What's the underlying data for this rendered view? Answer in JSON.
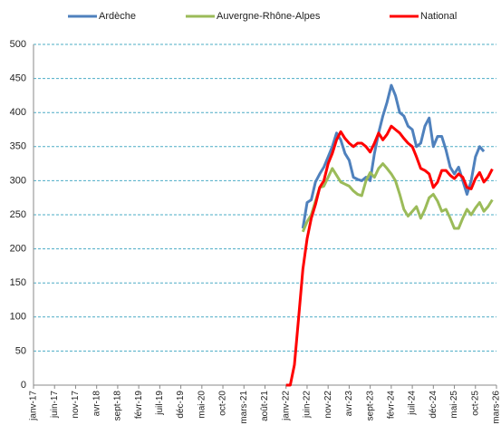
{
  "chart_data": {
    "type": "line",
    "categories": [
      "janv-17",
      null,
      null,
      null,
      null,
      "juin-17",
      null,
      null,
      null,
      null,
      "nov-17",
      null,
      null,
      null,
      null,
      "avr-18",
      null,
      null,
      null,
      null,
      "sept-18",
      null,
      null,
      null,
      null,
      "févr-19",
      null,
      null,
      null,
      null,
      "juil-19",
      null,
      null,
      null,
      null,
      "déc-19",
      null,
      null,
      null,
      null,
      "mai-20",
      null,
      null,
      null,
      null,
      "oct-20",
      null,
      null,
      null,
      null,
      "mars-21",
      null,
      null,
      null,
      null,
      "août-21",
      null,
      null,
      null,
      null,
      "janv-22",
      null,
      null,
      null,
      null,
      "juin-22",
      null,
      null,
      null,
      null,
      "nov-22",
      null,
      null,
      null,
      null,
      "avr-23",
      null,
      null,
      null,
      null,
      "sept-23",
      null,
      null,
      null,
      null,
      "févr-24",
      null,
      null,
      null,
      null,
      "juil-24",
      null,
      null,
      null,
      null,
      "déc-24",
      null,
      null,
      null,
      null,
      "mai-25",
      null,
      null,
      null,
      null,
      "oct-25",
      null,
      null,
      null,
      null,
      "mars-26"
    ],
    "series": [
      {
        "name": "Ardèche",
        "color": "#4f81bd",
        "values": [
          null,
          null,
          null,
          null,
          null,
          null,
          null,
          null,
          null,
          null,
          null,
          null,
          null,
          null,
          null,
          null,
          null,
          null,
          null,
          null,
          null,
          null,
          null,
          null,
          null,
          null,
          null,
          null,
          null,
          null,
          null,
          null,
          null,
          null,
          null,
          null,
          null,
          null,
          null,
          null,
          null,
          null,
          null,
          null,
          null,
          null,
          null,
          null,
          null,
          null,
          null,
          null,
          null,
          null,
          null,
          null,
          null,
          null,
          null,
          null,
          null,
          null,
          null,
          null,
          230,
          268,
          272,
          298,
          310,
          320,
          335,
          350,
          370,
          360,
          340,
          330,
          305,
          302,
          300,
          305,
          300,
          340,
          370,
          395,
          415,
          440,
          425,
          400,
          395,
          380,
          375,
          350,
          355,
          380,
          392,
          350,
          365,
          365,
          345,
          320,
          310,
          320,
          300,
          280,
          300,
          335,
          350,
          343,
          null,
          null,
          null
        ]
      },
      {
        "name": "Auvergne-Rhône-Alpes",
        "color": "#9bbb59",
        "values": [
          null,
          null,
          null,
          null,
          null,
          null,
          null,
          null,
          null,
          null,
          null,
          null,
          null,
          null,
          null,
          null,
          null,
          null,
          null,
          null,
          null,
          null,
          null,
          null,
          null,
          null,
          null,
          null,
          null,
          null,
          null,
          null,
          null,
          null,
          null,
          null,
          null,
          null,
          null,
          null,
          null,
          null,
          null,
          null,
          null,
          null,
          null,
          null,
          null,
          null,
          null,
          null,
          null,
          null,
          null,
          null,
          null,
          null,
          null,
          null,
          null,
          null,
          null,
          null,
          225,
          240,
          250,
          270,
          290,
          292,
          305,
          318,
          308,
          298,
          295,
          292,
          285,
          280,
          278,
          300,
          312,
          305,
          318,
          325,
          318,
          310,
          300,
          280,
          258,
          248,
          255,
          262,
          245,
          258,
          275,
          280,
          270,
          255,
          258,
          245,
          230,
          230,
          245,
          258,
          250,
          260,
          268,
          255,
          262,
          272,
          null
        ]
      },
      {
        "name": "National",
        "color": "#ff0000",
        "values": [
          null,
          null,
          null,
          null,
          null,
          null,
          null,
          null,
          null,
          null,
          null,
          null,
          null,
          null,
          null,
          null,
          null,
          null,
          null,
          null,
          null,
          null,
          null,
          null,
          null,
          null,
          null,
          null,
          null,
          null,
          null,
          null,
          null,
          null,
          null,
          null,
          null,
          null,
          null,
          null,
          null,
          null,
          null,
          null,
          null,
          null,
          null,
          null,
          null,
          null,
          null,
          null,
          null,
          null,
          null,
          null,
          null,
          null,
          null,
          null,
          0,
          0,
          30,
          100,
          170,
          215,
          245,
          265,
          290,
          300,
          325,
          340,
          360,
          372,
          362,
          355,
          350,
          355,
          355,
          350,
          342,
          355,
          370,
          360,
          368,
          380,
          375,
          370,
          362,
          355,
          350,
          335,
          318,
          315,
          310,
          290,
          298,
          315,
          315,
          308,
          303,
          310,
          305,
          290,
          288,
          303,
          312,
          298,
          305,
          317,
          null
        ]
      }
    ],
    "ylim": [
      0,
      500
    ],
    "yticks": [
      0,
      50,
      100,
      150,
      200,
      250,
      300,
      350,
      400,
      450,
      500
    ],
    "grid": true
  }
}
